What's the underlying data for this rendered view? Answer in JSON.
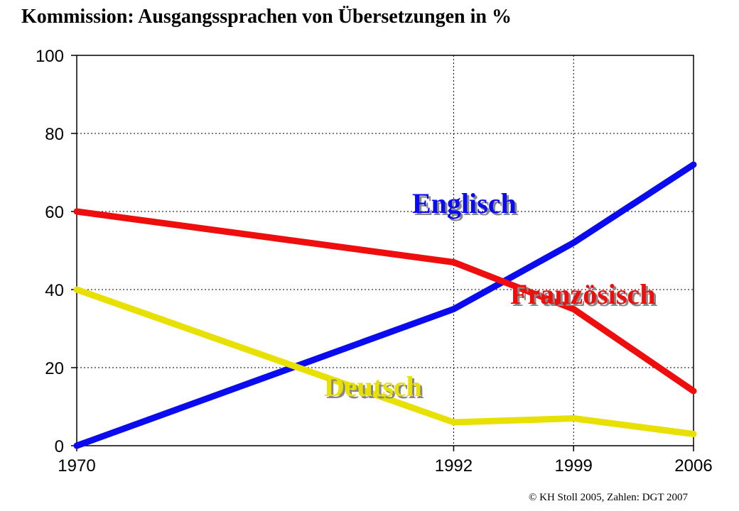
{
  "title": "Kommission: Ausgangssprachen von Übersetzungen in %",
  "footer": "© KH Stoll 2005, Zahlen: DGT 2007",
  "chart_data": {
    "type": "line",
    "title": "Kommission: Ausgangssprachen von Übersetzungen in %",
    "xlabel": "",
    "ylabel": "",
    "x": [
      1970,
      1992,
      1999,
      2006
    ],
    "x_tick_labels": [
      "1970",
      "1992",
      "1999",
      "2006"
    ],
    "ylim": [
      0,
      100
    ],
    "y_ticks": [
      0,
      20,
      40,
      60,
      80,
      100
    ],
    "grid": "dotted vertical at 1992 and 1999, dotted horizontal at 20, 40, 60, 80",
    "legend": "inline labels next to lines",
    "series": [
      {
        "name": "Englisch",
        "values": [
          0,
          35,
          52,
          72
        ],
        "color": "#0b0bf0"
      },
      {
        "name": "Französisch",
        "values": [
          60,
          47,
          35,
          14
        ],
        "color": "#ee0e0e"
      },
      {
        "name": "Deutsch",
        "values": [
          40,
          6,
          7,
          3
        ],
        "color": "#e8e000"
      }
    ]
  }
}
